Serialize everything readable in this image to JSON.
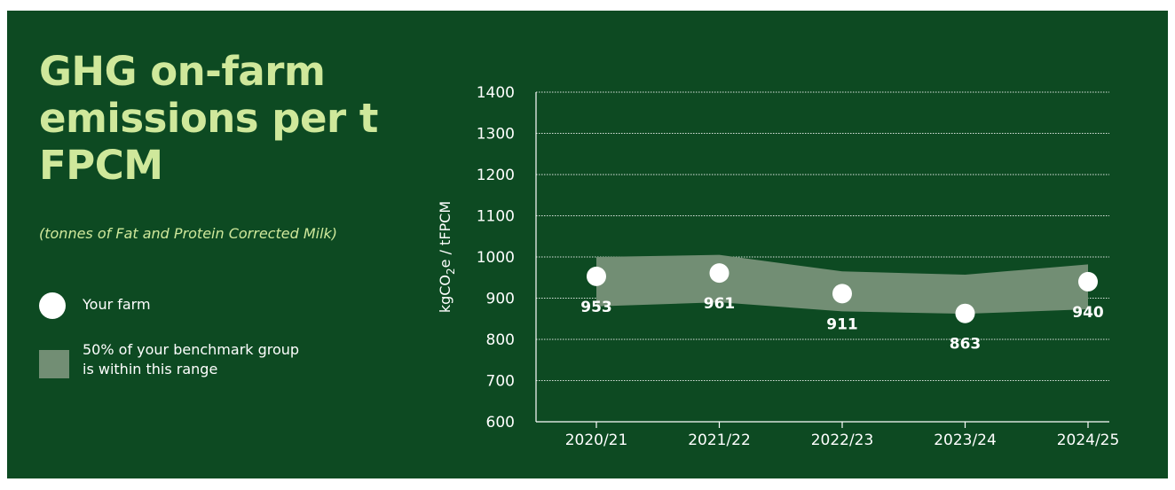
{
  "title": "GHG on-farm emissions per t FPCM",
  "subtitle": "(tonnes of Fat and Protein Corrected Milk)",
  "legend": {
    "farm": "Your farm",
    "range": "50% of your benchmark group is within this range"
  },
  "colors": {
    "background": "#0d4a22",
    "title": "#cfe89b",
    "band": "#728e74",
    "marker": "#ffffff"
  },
  "chart_data": {
    "type": "line",
    "categories": [
      "2020/21",
      "2021/22",
      "2022/23",
      "2023/24",
      "2024/25"
    ],
    "series": [
      {
        "name": "Your farm",
        "values": [
          953,
          961,
          911,
          863,
          940
        ]
      }
    ],
    "band": {
      "name": "50% of your benchmark group is within this range",
      "upper": [
        1000,
        1005,
        965,
        957,
        982
      ],
      "lower": [
        880,
        890,
        868,
        862,
        873
      ]
    },
    "ylabel": "kgCO₂e / tFPCM",
    "xlabel": "",
    "ylim": [
      600,
      1400
    ],
    "yticks": [
      600,
      700,
      800,
      900,
      1000,
      1100,
      1200,
      1300,
      1400
    ],
    "grid": true,
    "data_labels": true
  }
}
